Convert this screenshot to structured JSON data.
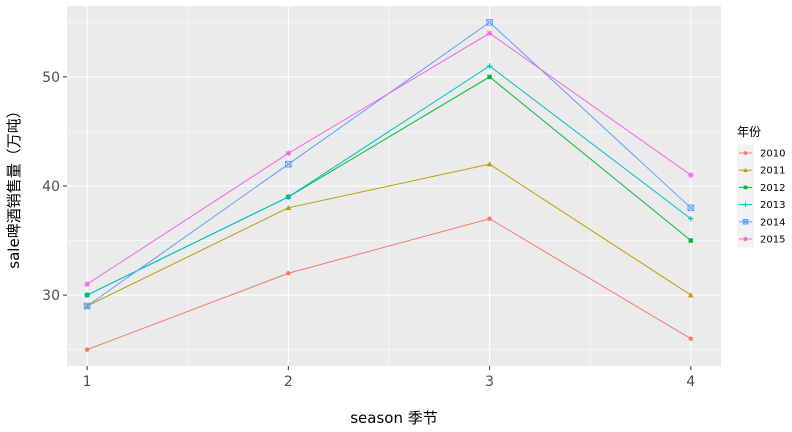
{
  "chart_data": {
    "type": "line",
    "xlabel": "season 季节",
    "ylabel": "sale啤酒销售量（万吨）",
    "categories": [
      "1",
      "2",
      "3",
      "4"
    ],
    "xlim": [
      0.9,
      4.15
    ],
    "ylim": [
      23.5,
      56.5
    ],
    "y_ticks": [
      30,
      40,
      50
    ],
    "grid": true,
    "legend": {
      "title": "年份",
      "position": "right"
    },
    "series": [
      {
        "name": "2010",
        "color": "#F8766D",
        "marker": "circle",
        "values": [
          25,
          32,
          37,
          26
        ]
      },
      {
        "name": "2011",
        "color": "#B79F00",
        "marker": "triangle",
        "values": [
          29,
          38,
          42,
          30
        ]
      },
      {
        "name": "2012",
        "color": "#00BA38",
        "marker": "square",
        "values": [
          30,
          39,
          50,
          35
        ]
      },
      {
        "name": "2013",
        "color": "#00BFC4",
        "marker": "plus",
        "values": [
          30,
          39,
          51,
          37
        ]
      },
      {
        "name": "2014",
        "color": "#619CFF",
        "marker": "box-x",
        "values": [
          29,
          42,
          55,
          38
        ]
      },
      {
        "name": "2015",
        "color": "#F564E3",
        "marker": "star",
        "values": [
          31,
          43,
          54,
          41
        ]
      }
    ]
  }
}
